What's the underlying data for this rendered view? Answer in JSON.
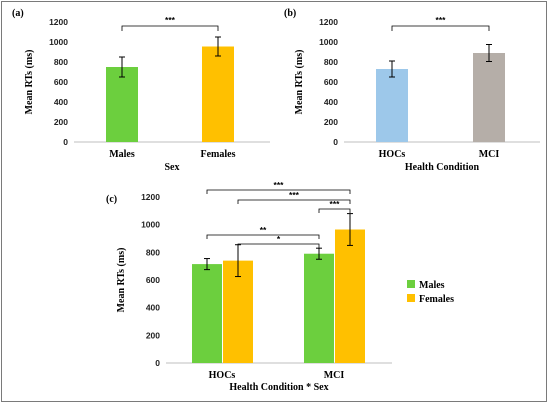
{
  "chart_data": [
    {
      "panel_label": "(a)",
      "type": "bar",
      "categories": [
        "Males",
        "Females"
      ],
      "values": [
        750,
        955
      ],
      "errors": [
        100,
        95
      ],
      "colors": [
        "#6ccf3e",
        "#ffc000"
      ],
      "xlabel": "Sex",
      "ylabel": "Mean RTs (ms)",
      "ylim": [
        0,
        1200
      ],
      "yticks": [
        0,
        200,
        400,
        600,
        800,
        1000,
        1200
      ],
      "grid": false,
      "significance": [
        {
          "from": 0,
          "to": 1,
          "label": "***"
        }
      ]
    },
    {
      "panel_label": "(b)",
      "type": "bar",
      "categories": [
        "HOCs",
        "MCI"
      ],
      "values": [
        730,
        890
      ],
      "errors": [
        80,
        85
      ],
      "colors": [
        "#9dc8ea",
        "#b5aea8"
      ],
      "xlabel": "Health Condition",
      "ylabel": "Mean RTs (ms)",
      "ylim": [
        0,
        1200
      ],
      "yticks": [
        0,
        200,
        400,
        600,
        800,
        1000,
        1200
      ],
      "grid": false,
      "significance": [
        {
          "from": 0,
          "to": 1,
          "label": "***"
        }
      ]
    },
    {
      "panel_label": "(c)",
      "type": "bar",
      "categories": [
        "HOCs",
        "MCI"
      ],
      "series": [
        {
          "name": "Males",
          "values": [
            715,
            790
          ],
          "errors": [
            40,
            40
          ],
          "color": "#6ccf3e"
        },
        {
          "name": "Females",
          "values": [
            740,
            965
          ],
          "errors": [
            115,
            115
          ],
          "color": "#ffc000"
        }
      ],
      "xlabel": "Health Condition * Sex",
      "ylabel": "Mean RTs (ms)",
      "ylim": [
        0,
        1200
      ],
      "yticks": [
        0,
        200,
        400,
        600,
        800,
        1000,
        1200
      ],
      "grid": false,
      "legend_position": "right",
      "significance": [
        {
          "from": [
            0,
            0
          ],
          "to": [
            1,
            1
          ],
          "label": "***"
        },
        {
          "from": [
            0,
            1
          ],
          "to": [
            1,
            1
          ],
          "label": "***"
        },
        {
          "from": [
            1,
            0
          ],
          "to": [
            1,
            1
          ],
          "label": "***"
        },
        {
          "from": [
            0,
            0
          ],
          "to": [
            1,
            0
          ],
          "label": "**"
        },
        {
          "from": [
            0,
            1
          ],
          "to": [
            1,
            0
          ],
          "label": "*"
        }
      ]
    }
  ]
}
